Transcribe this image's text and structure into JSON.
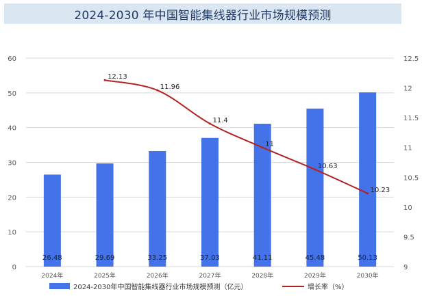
{
  "title": "2024-2030 年中国智能集线器行业市场规模预测",
  "colors": {
    "bar": "#4472e8",
    "line": "#b22222",
    "title_bg": "#dbe6f3",
    "title_text": "#1f3864",
    "grid": "#d9d9d9"
  },
  "chart_data": {
    "type": "bar+line",
    "categories": [
      "2024年",
      "2025年",
      "2026年",
      "2027年",
      "2028年",
      "2029年",
      "2030年"
    ],
    "series": [
      {
        "name": "2024-2030年中国智能集线器行业市场规模预测（亿元）",
        "type": "bar",
        "axis": "left",
        "values": [
          26.48,
          29.69,
          33.25,
          37.03,
          41.11,
          45.48,
          50.13
        ],
        "labels": [
          "26.48",
          "29.69",
          "33.25",
          "37.03",
          "41.11",
          "45.48",
          "50.13"
        ]
      },
      {
        "name": "增长率（%）",
        "type": "line",
        "axis": "right",
        "values": [
          null,
          12.13,
          11.96,
          11.4,
          11,
          10.63,
          10.23
        ],
        "labels": [
          "",
          "12.13",
          "11.96",
          "11.4",
          "11",
          "10.63",
          "10.23"
        ]
      }
    ],
    "left_axis": {
      "ylim": [
        0,
        60
      ],
      "ticks": [
        "0",
        "10",
        "20",
        "30",
        "40",
        "50",
        "60"
      ]
    },
    "right_axis": {
      "ylim": [
        9,
        12.5
      ],
      "ticks": [
        "9",
        "9.5",
        "10",
        "10.5",
        "11",
        "11.5",
        "12",
        "12.5"
      ]
    },
    "grid": true,
    "legend_position": "bottom"
  }
}
